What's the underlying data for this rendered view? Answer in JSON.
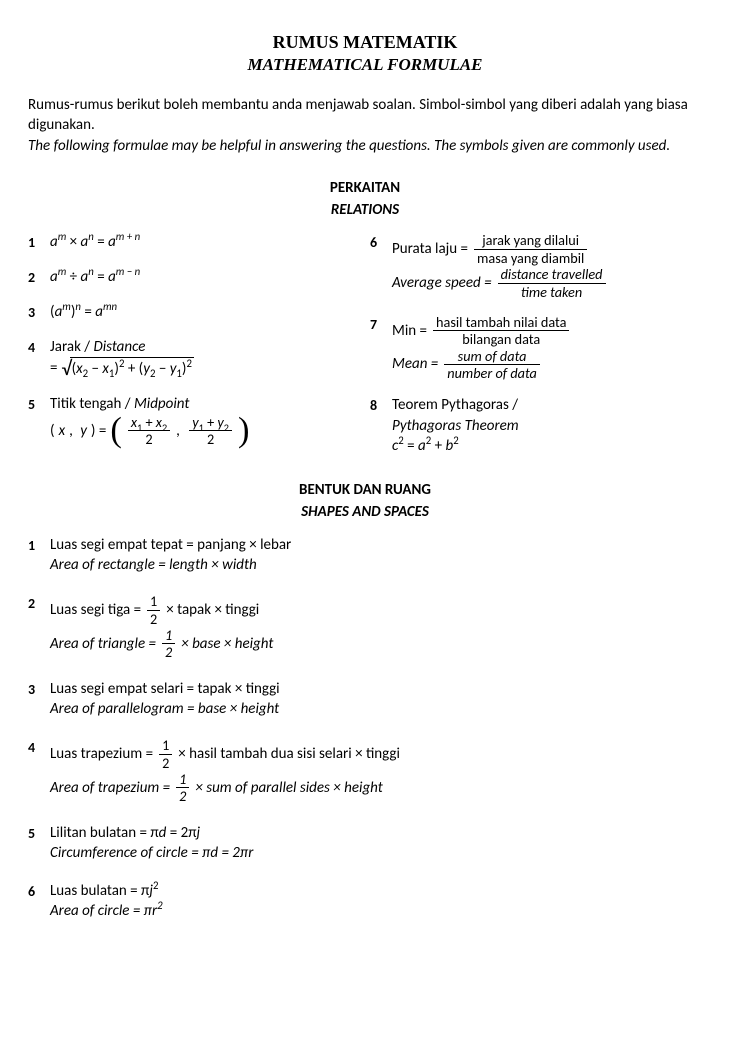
{
  "title": {
    "line1": "RUMUS MATEMATIK",
    "line2": "MATHEMATICAL FORMULAE"
  },
  "intro": {
    "ms": "Rumus-rumus berikut boleh membantu anda menjawab soalan. Simbol-simbol yang diberi adalah yang biasa digunakan.",
    "en": "The following formulae may be helpful in answering the questions. The symbols given are commonly used."
  },
  "section1": {
    "ms": "PERKAITAN",
    "en": "RELATIONS"
  },
  "section2": {
    "ms": "BENTUK DAN RUANG",
    "en": "SHAPES AND SPACES"
  },
  "relations_left": [
    {
      "n": "1",
      "html": "<span class='it'>a<sup>m</sup></span> × <span class='it'>a<sup>n</sup></span> = <span class='it'>a<sup>m + n</sup></span>"
    },
    {
      "n": "2",
      "html": "<span class='it'>a<sup>m</sup></span> ÷ <span class='it'>a<sup>n</sup></span> = <span class='it'>a<sup>m − n</sup></span>"
    },
    {
      "n": "3",
      "html": "(<span class='it'>a<sup>m</sup></span>)<sup><span class='it'>n</span></sup> = <span class='it'>a<sup>mn</sup></span>"
    },
    {
      "n": "4",
      "html": "Jarak / <span class='it'>Distance</span><br><span class='mid-row'>= <span class='sqrt-wrap'><span class='sqrt-sym'>√</span><span class='sqrt-body'>(<span class='it'>x</span><sub>2</sub> − <span class='it'>x</span><sub>1</sub>)<sup>2</sup> + (<span class='it'>y</span><sub>2</sub> − <span class='it'>y</span><sub>1</sub>)<sup>2</sup></span></span></span>",
      "mt": true
    },
    {
      "n": "5",
      "html": "Titik tengah / <span class='it'>Midpoint</span><br><span class='mid-row'>(<span class='it'>x</span>,&nbsp; <span class='it'>y</span>) = <span class='paren-big'>(</span> <span class='frac'><span class='top'><span class='it'>x</span><sub>1</sub> + <span class='it'>x</span><sub>2</sub></span><span class='bot'>2</span></span> ,&nbsp; <span class='frac'><span class='top'><span class='it'>y</span><sub>1</sub> + <span class='it'>y</span><sub>2</sub></span><span class='bot'>2</span></span> <span class='paren-big'>)</span></span>",
      "mt": true
    }
  ],
  "relations_right": [
    {
      "n": "6",
      "html": "<span class='mid-row'>Purata laju = <span class='frac'><span class='top'>jarak yang dilalui</span><span class='bot'>masa yang diambil</span></span></span><br><span class='mid-row it'>Average speed = <span class='frac'><span class='top'>distance travelled</span><span class='bot'>time taken</span></span></span>"
    },
    {
      "n": "7",
      "html": "<span class='mid-row'>Min = <span class='frac'><span class='top'>hasil tambah nilai data</span><span class='bot'>bilangan data</span></span></span><br><span class='mid-row it'>Mean = <span class='frac'><span class='top'>sum of data</span><span class='bot'>number of data</span></span></span>",
      "mt": true
    },
    {
      "n": "8",
      "html": "Teorem Pythagoras /<br><span class='it'>Pythagoras Theorem</span><br><span class='it'>c</span><sup>2</sup> = <span class='it'>a</span><sup>2</sup> + <span class='it'>b</span><sup>2</sup>",
      "mt": true
    }
  ],
  "shapes": [
    {
      "n": "1",
      "html": "Luas segi empat tepat = panjang × lebar<br><span class='it'>Area of rectangle = length × width</span>"
    },
    {
      "n": "2",
      "html": "<span class='mid-row'>Luas segi tiga = <span class='frac'><span class='top'>1</span><span class='bot'>2</span></span> × tapak × tinggi</span><br><span class='mid-row it'>Area of triangle = <span class='frac'><span class='top'>1</span><span class='bot'>2</span></span> × base × height</span>"
    },
    {
      "n": "3",
      "html": "Luas segi empat selari = tapak × tinggi<br><span class='it'>Area of parallelogram = base × height</span>"
    },
    {
      "n": "4",
      "html": "<span class='mid-row'>Luas trapezium = <span class='frac'><span class='top'>1</span><span class='bot'>2</span></span> × hasil tambah dua sisi selari × tinggi</span><br><span class='mid-row it'>Area of trapezium = <span class='frac'><span class='top'>1</span><span class='bot'>2</span></span> × sum of parallel sides × height</span>"
    },
    {
      "n": "5",
      "html": "Lilitan bulatan = π<span class='it'>d</span> = 2π<span class='it'>j</span><br><span class='it'>Circumference of circle = πd = 2πr</span>"
    },
    {
      "n": "6",
      "html": "Luas bulatan = π<span class='it'>j</span><sup>2</sup><br><span class='it'>Area of circle = πr<sup>2</sup></span>"
    }
  ]
}
